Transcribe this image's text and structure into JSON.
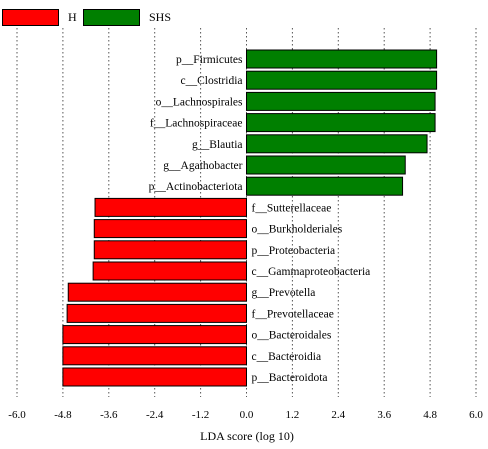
{
  "legend": [
    {
      "label": "H",
      "color": "#ff0000"
    },
    {
      "label": "SHS",
      "color": "#007f00"
    }
  ],
  "chart_data": {
    "type": "bar",
    "orientation": "horizontal",
    "title": "",
    "xlabel": "LDA score (log 10)",
    "ylabel": "",
    "xlim": [
      -6.0,
      6.0
    ],
    "xticks": [
      "-6.0",
      "-4.8",
      "-3.6",
      "-2.4",
      "-1.2",
      "0.0",
      "1.2",
      "2.4",
      "3.6",
      "4.8",
      "6.0"
    ],
    "grid": "vertical dotted",
    "legend_position": "top-left",
    "bar_colors": {
      "H": "#ff0000",
      "SHS": "#007f00"
    },
    "categories": [
      "p__Firmicutes",
      "c__Clostridia",
      "o__Lachnospirales",
      "f__Lachnospiraceae",
      "g__Blautia",
      "g__Agathobacter",
      "p__Actinobacteriota",
      "f__Sutterellaceae",
      "o__Burkholderiales",
      "p__Proteobacteria",
      "c__Gammaproteobacteria",
      "g__Prevotella",
      "f__Prevotellaceae",
      "o__Bacteroidales",
      "c__Bacteroidia",
      "p__Bacteroidota"
    ],
    "values": [
      4.97,
      4.97,
      4.93,
      4.93,
      4.72,
      4.15,
      4.08,
      -3.96,
      -3.98,
      -3.98,
      -4.01,
      -4.66,
      -4.69,
      -4.8,
      -4.8,
      -4.8
    ],
    "groups": [
      "SHS",
      "SHS",
      "SHS",
      "SHS",
      "SHS",
      "SHS",
      "SHS",
      "H",
      "H",
      "H",
      "H",
      "H",
      "H",
      "H",
      "H",
      "H"
    ]
  }
}
